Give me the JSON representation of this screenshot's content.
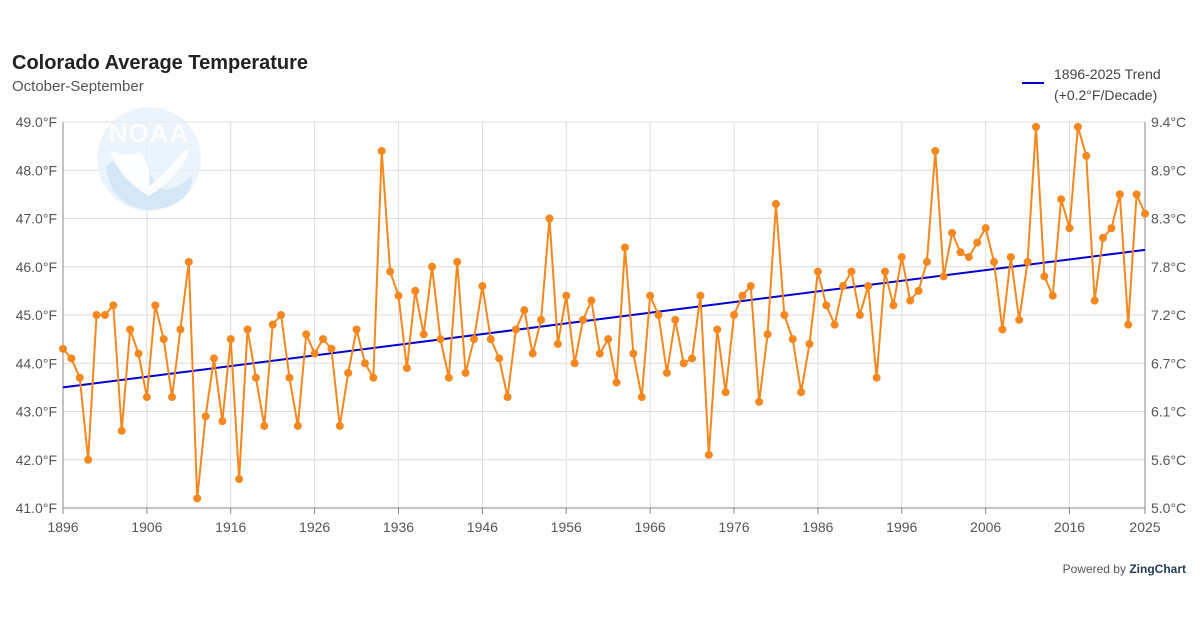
{
  "header": {
    "title": "Colorado Average Temperature",
    "subtitle": "October-September"
  },
  "legend": {
    "line1": "1896-2025 Trend",
    "line2": "(+0.2°F/Decade)",
    "color": "#0000cc"
  },
  "logo": {
    "text": "NOAA",
    "color": "#4a90d9"
  },
  "footer": {
    "prefix": "Powered by",
    "brand": "ZingChart"
  },
  "chart_data": {
    "type": "line",
    "x_start": 1896,
    "x_end": 2025,
    "x_ticks": [
      "1896",
      "1906",
      "1916",
      "1926",
      "1936",
      "1946",
      "1956",
      "1966",
      "1976",
      "1986",
      "1996",
      "2006",
      "2016",
      "2025"
    ],
    "y_ticks_left": [
      "41.0°F",
      "42.0°F",
      "43.0°F",
      "44.0°F",
      "45.0°F",
      "46.0°F",
      "47.0°F",
      "48.0°F",
      "49.0°F"
    ],
    "y_ticks_right": [
      "5.0°C",
      "5.6°C",
      "6.1°C",
      "6.7°C",
      "7.2°C",
      "7.8°C",
      "8.3°C",
      "8.9°C",
      "9.4°C"
    ],
    "ylim": [
      41,
      49
    ],
    "grid": true,
    "legend_position": "top-right",
    "series": [
      {
        "type": "line",
        "color": "#f5871f",
        "years": [
          1896,
          1897,
          1898,
          1899,
          1900,
          1901,
          1902,
          1903,
          1904,
          1905,
          1906,
          1907,
          1908,
          1909,
          1910,
          1911,
          1912,
          1913,
          1914,
          1915,
          1916,
          1917,
          1918,
          1919,
          1920,
          1921,
          1922,
          1923,
          1924,
          1925,
          1926,
          1927,
          1928,
          1929,
          1930,
          1931,
          1932,
          1933,
          1934,
          1935,
          1936,
          1937,
          1938,
          1939,
          1940,
          1941,
          1942,
          1943,
          1944,
          1945,
          1946,
          1947,
          1948,
          1949,
          1950,
          1951,
          1952,
          1953,
          1954,
          1955,
          1956,
          1957,
          1958,
          1959,
          1960,
          1961,
          1962,
          1963,
          1964,
          1965,
          1966,
          1967,
          1968,
          1969,
          1970,
          1971,
          1972,
          1973,
          1974,
          1975,
          1976,
          1977,
          1978,
          1979,
          1980,
          1981,
          1982,
          1983,
          1984,
          1985,
          1986,
          1987,
          1988,
          1989,
          1990,
          1991,
          1992,
          1993,
          1994,
          1995,
          1996,
          1997,
          1998,
          1999,
          2000,
          2001,
          2002,
          2003,
          2004,
          2005,
          2006,
          2007,
          2008,
          2009,
          2010,
          2011,
          2012,
          2013,
          2014,
          2015,
          2016,
          2017,
          2018,
          2019,
          2020,
          2021,
          2022,
          2023,
          2024,
          2025
        ],
        "values": [
          44.3,
          44.1,
          43.7,
          42.0,
          45.0,
          45.0,
          45.2,
          42.6,
          44.7,
          44.2,
          43.3,
          45.2,
          44.5,
          43.3,
          44.7,
          46.1,
          41.2,
          42.9,
          44.1,
          42.8,
          44.5,
          41.6,
          44.7,
          43.7,
          42.7,
          44.8,
          45.0,
          43.7,
          42.7,
          44.6,
          44.2,
          44.5,
          44.3,
          42.7,
          43.8,
          44.7,
          44.0,
          43.7,
          48.4,
          45.9,
          45.4,
          43.9,
          45.5,
          44.6,
          46.0,
          44.5,
          43.7,
          46.1,
          43.8,
          44.5,
          45.6,
          44.5,
          44.1,
          43.3,
          44.7,
          45.1,
          44.2,
          44.9,
          47.0,
          44.4,
          45.4,
          44.0,
          44.9,
          45.3,
          44.2,
          44.5,
          43.6,
          46.4,
          44.2,
          43.3,
          45.4,
          45.0,
          43.8,
          44.9,
          44.0,
          44.1,
          45.4,
          42.1,
          44.7,
          43.4,
          45.0,
          45.4,
          45.6,
          43.2,
          44.6,
          47.3,
          45.0,
          44.5,
          43.4,
          44.4,
          45.9,
          45.2,
          44.8,
          45.6,
          45.9,
          45.0,
          45.6,
          43.7,
          45.9,
          45.2,
          46.2,
          45.3,
          45.5,
          46.1,
          48.4,
          45.8,
          46.7,
          46.3,
          46.2,
          46.5,
          46.8,
          46.1,
          44.7,
          46.2,
          44.9,
          46.1,
          48.9,
          45.8,
          45.4,
          47.4,
          46.8,
          48.9,
          48.3,
          45.3,
          46.6,
          46.8,
          47.5,
          44.8,
          47.5,
          47.1
        ]
      },
      {
        "type": "trend",
        "name": "1896-2025 Trend",
        "color": "#0000cc",
        "start_value": 43.5,
        "end_value": 46.35
      }
    ]
  }
}
